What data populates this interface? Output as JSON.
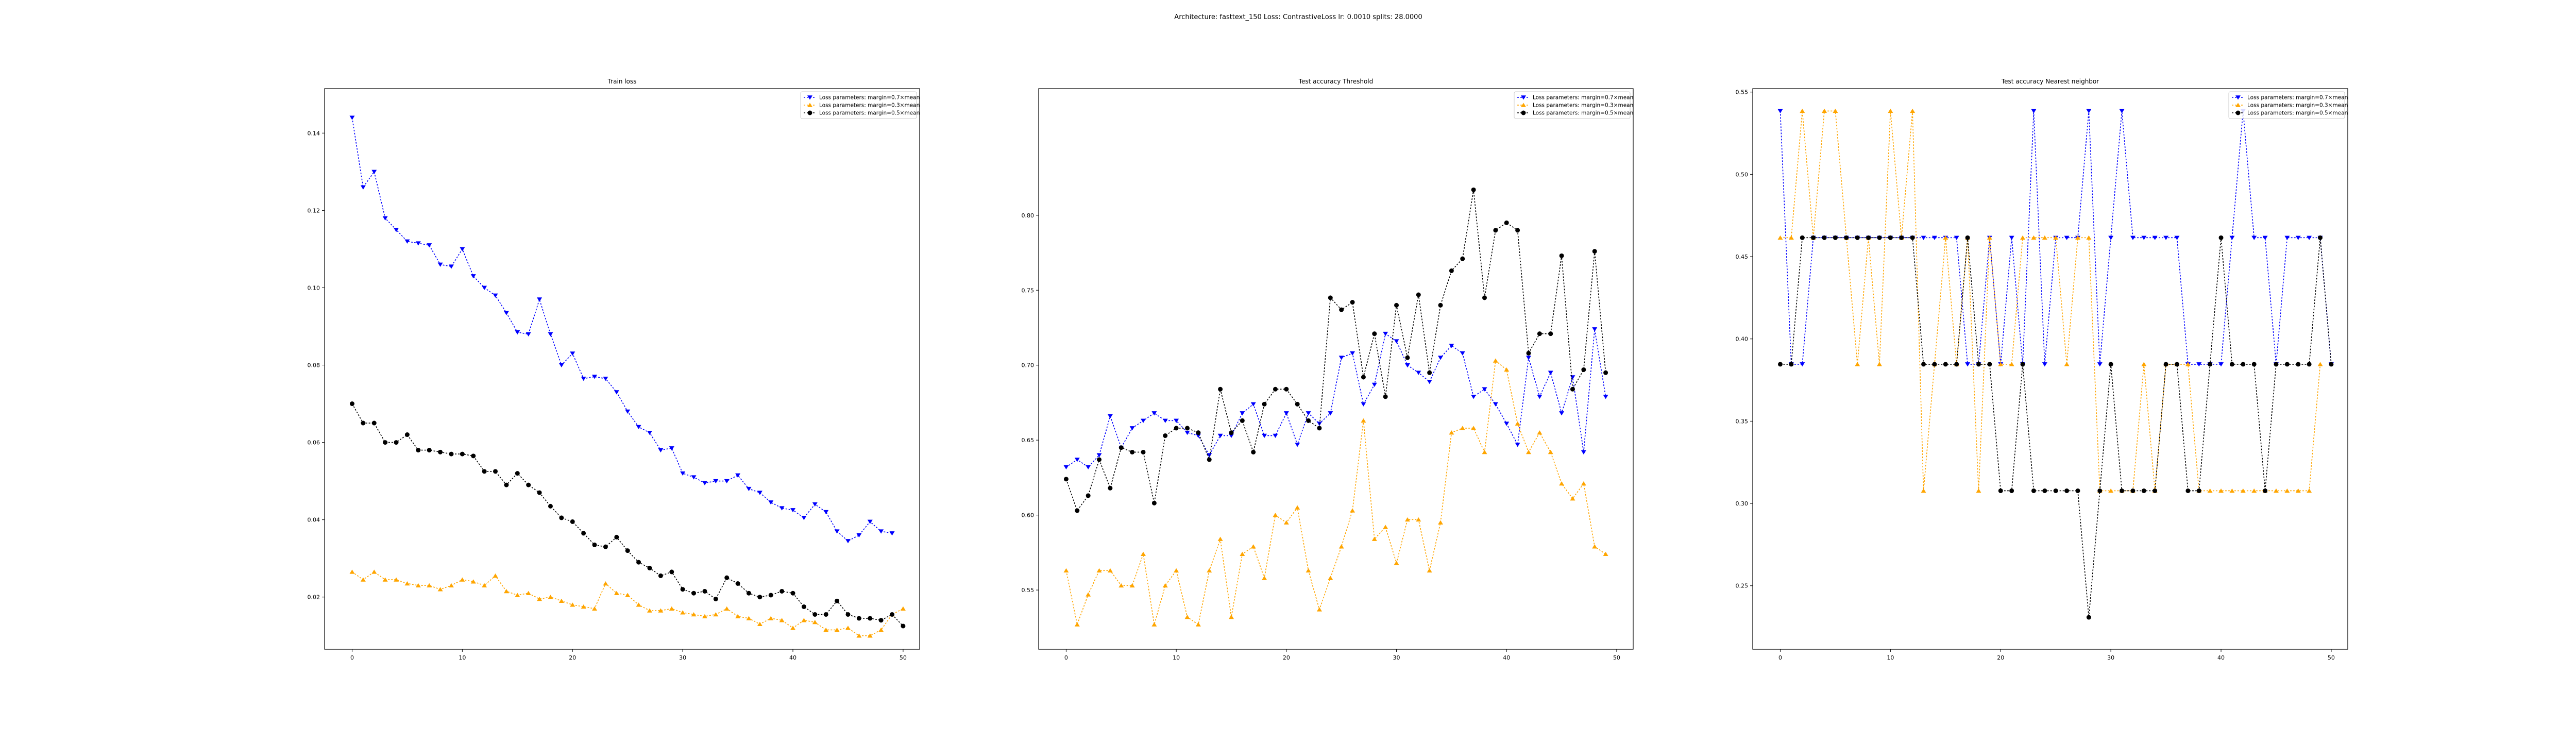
{
  "figure_title": "Architecture: fasttext_150 Loss: ContrastiveLoss lr: 0.0010 splits: 28.0000",
  "colors": {
    "series_0": "#0000ff",
    "series_1": "#ffa500",
    "series_2": "#000000"
  },
  "chart_data": [
    {
      "type": "line",
      "title": "Train loss",
      "xlabel": "",
      "ylabel": "",
      "xlim": [
        -2.5,
        51.5
      ],
      "ylim": [
        0.0065,
        0.1515
      ],
      "xticks": [
        0,
        10,
        20,
        30,
        40,
        50
      ],
      "xtick_labels": [
        "0",
        "10",
        "20",
        "30",
        "40",
        "50"
      ],
      "yticks": [
        0.02,
        0.04,
        0.06,
        0.08,
        0.1,
        0.12,
        0.14
      ],
      "ytick_labels": [
        "0.02",
        "0.04",
        "0.06",
        "0.08",
        "0.10",
        "0.12",
        "0.14"
      ],
      "legend_position": "top-right",
      "series": [
        {
          "name": "Loss parameters: margin=0.7×mean",
          "color": "#0000ff",
          "values": [
            0.144,
            0.126,
            0.13,
            0.118,
            0.115,
            0.112,
            0.1115,
            0.111,
            0.106,
            0.1055,
            0.11,
            0.103,
            0.1,
            0.098,
            0.0935,
            0.0885,
            0.088,
            0.097,
            0.088,
            0.08,
            0.083,
            0.0765,
            0.077,
            0.0765,
            0.073,
            0.068,
            0.064,
            0.0625,
            0.058,
            0.0585,
            0.052,
            0.051,
            0.0495,
            0.05,
            0.05,
            0.0515,
            0.048,
            0.047,
            0.0445,
            0.043,
            0.0425,
            0.0405,
            0.044,
            0.042,
            0.037,
            0.0345,
            0.036,
            0.0395,
            0.037,
            0.0365
          ]
        },
        {
          "name": "Loss parameters: margin=0.3×mean",
          "color": "#ffa500",
          "values": [
            0.0265,
            0.0245,
            0.0265,
            0.0245,
            0.0245,
            0.0235,
            0.023,
            0.023,
            0.022,
            0.023,
            0.0245,
            0.024,
            0.023,
            0.0255,
            0.0215,
            0.0205,
            0.021,
            0.0195,
            0.02,
            0.019,
            0.018,
            0.0175,
            0.017,
            0.0235,
            0.021,
            0.0205,
            0.018,
            0.0165,
            0.0165,
            0.017,
            0.016,
            0.0155,
            0.015,
            0.0155,
            0.017,
            0.015,
            0.0145,
            0.013,
            0.0145,
            0.014,
            0.012,
            0.014,
            0.0135,
            0.0115,
            0.0115,
            0.012,
            0.01,
            0.01,
            0.0115,
            0.0155,
            0.017
          ]
        },
        {
          "name": "Loss parameters: margin=0.5×mean",
          "color": "#000000",
          "values": [
            0.07,
            0.065,
            0.065,
            0.06,
            0.06,
            0.062,
            0.058,
            0.058,
            0.0575,
            0.057,
            0.057,
            0.0565,
            0.0525,
            0.0525,
            0.049,
            0.052,
            0.049,
            0.047,
            0.0435,
            0.0405,
            0.0395,
            0.0365,
            0.0335,
            0.033,
            0.0355,
            0.032,
            0.029,
            0.0275,
            0.0255,
            0.0265,
            0.022,
            0.021,
            0.0215,
            0.0195,
            0.025,
            0.0235,
            0.021,
            0.02,
            0.0205,
            0.0215,
            0.021,
            0.0175,
            0.0155,
            0.0155,
            0.019,
            0.0155,
            0.0145,
            0.0145,
            0.014,
            0.0155,
            0.0125
          ]
        }
      ]
    },
    {
      "type": "line",
      "title": "Test accuracy Threshold",
      "xlabel": "",
      "ylabel": "",
      "xlim": [
        -2.5,
        51.5
      ],
      "ylim": [
        0.5105,
        0.8845
      ],
      "xticks": [
        0,
        10,
        20,
        30,
        40,
        50
      ],
      "xtick_labels": [
        "0",
        "10",
        "20",
        "30",
        "40",
        "50"
      ],
      "yticks": [
        0.55,
        0.6,
        0.65,
        0.7,
        0.75,
        0.8
      ],
      "ytick_labels": [
        "0.55",
        "0.60",
        "0.65",
        "0.70",
        "0.75",
        "0.80"
      ],
      "legend_position": "top-right",
      "series": [
        {
          "name": "Loss parameters: margin=0.7×mean",
          "color": "#0000ff",
          "values": [
            0.632,
            0.637,
            0.632,
            0.64,
            0.666,
            0.645,
            0.658,
            0.663,
            0.668,
            0.663,
            0.663,
            0.655,
            0.653,
            0.64,
            0.653,
            0.653,
            0.668,
            0.674,
            0.653,
            0.653,
            0.668,
            0.647,
            0.668,
            0.661,
            0.668,
            0.705,
            0.708,
            0.674,
            0.687,
            0.721,
            0.716,
            0.7,
            0.695,
            0.689,
            0.705,
            0.713,
            0.708,
            0.679,
            0.684,
            0.674,
            0.661,
            0.647,
            0.705,
            0.679,
            0.695,
            0.668,
            0.692,
            0.642,
            0.724,
            0.679
          ]
        },
        {
          "name": "Loss parameters: margin=0.3×mean",
          "color": "#ffa500",
          "values": [
            0.563,
            0.527,
            0.547,
            0.563,
            0.563,
            0.553,
            0.553,
            0.574,
            0.527,
            0.553,
            0.563,
            0.532,
            0.527,
            0.563,
            0.584,
            0.532,
            0.574,
            0.579,
            0.558,
            0.6,
            0.595,
            0.605,
            0.563,
            0.537,
            0.558,
            0.579,
            0.603,
            0.663,
            0.584,
            0.592,
            0.568,
            0.597,
            0.597,
            0.563,
            0.595,
            0.655,
            0.658,
            0.658,
            0.642,
            0.703,
            0.697,
            0.661,
            0.642,
            0.655,
            0.642,
            0.621,
            0.611,
            0.621,
            0.579,
            0.574
          ]
        },
        {
          "name": "Loss parameters: margin=0.5×mean",
          "color": "#000000",
          "values": [
            0.624,
            0.603,
            0.613,
            0.637,
            0.618,
            0.645,
            0.642,
            0.642,
            0.608,
            0.653,
            0.658,
            0.658,
            0.655,
            0.637,
            0.684,
            0.655,
            0.663,
            0.642,
            0.674,
            0.684,
            0.684,
            0.674,
            0.663,
            0.658,
            0.745,
            0.737,
            0.742,
            0.692,
            0.721,
            0.679,
            0.74,
            0.705,
            0.747,
            0.695,
            0.74,
            0.763,
            0.771,
            0.817,
            0.745,
            0.79,
            0.795,
            0.79,
            0.708,
            0.721,
            0.721,
            0.773,
            0.684,
            0.697,
            0.776,
            0.695
          ]
        }
      ]
    },
    {
      "type": "line",
      "title": "Test accuracy Nearest neighbor",
      "xlabel": "",
      "ylabel": "",
      "xlim": [
        -2.5,
        51.5
      ],
      "ylim": [
        0.2114,
        0.5521
      ],
      "xticks": [
        0,
        10,
        20,
        30,
        40,
        50
      ],
      "xtick_labels": [
        "0",
        "10",
        "20",
        "30",
        "40",
        "50"
      ],
      "yticks": [
        0.25,
        0.3,
        0.35,
        0.4,
        0.45,
        0.5,
        0.55
      ],
      "ytick_labels": [
        "0.25",
        "0.30",
        "0.35",
        "0.40",
        "0.45",
        "0.50",
        "0.55"
      ],
      "legend_position": "top-right",
      "series": [
        {
          "name": "Loss parameters: margin=0.7×mean",
          "color": "#0000ff",
          "values": [
            0.5385,
            0.3846,
            0.3846,
            0.4615,
            0.4615,
            0.4615,
            0.4615,
            0.4615,
            0.4615,
            0.4615,
            0.4615,
            0.4615,
            0.4615,
            0.4615,
            0.4615,
            0.4615,
            0.4615,
            0.3846,
            0.3846,
            0.4615,
            0.3846,
            0.4615,
            0.3846,
            0.5385,
            0.3846,
            0.4615,
            0.4615,
            0.4615,
            0.5385,
            0.3846,
            0.4615,
            0.5385,
            0.4615,
            0.4615,
            0.4615,
            0.4615,
            0.4615,
            0.3846,
            0.3846,
            0.3846,
            0.3846,
            0.4615,
            0.5385,
            0.4615,
            0.4615,
            0.3846,
            0.4615,
            0.4615,
            0.4615,
            0.4615,
            0.3846
          ]
        },
        {
          "name": "Loss parameters: margin=0.3×mean",
          "color": "#ffa500",
          "values": [
            0.4615,
            0.4615,
            0.5385,
            0.4615,
            0.5385,
            0.5385,
            0.4615,
            0.3846,
            0.4615,
            0.3846,
            0.5385,
            0.4615,
            0.5385,
            0.3077,
            0.3846,
            0.4615,
            0.3846,
            0.4615,
            0.3077,
            0.4615,
            0.3846,
            0.3846,
            0.4615,
            0.4615,
            0.4615,
            0.4615,
            0.3846,
            0.4615,
            0.4615,
            0.3077,
            0.3077,
            0.3077,
            0.3077,
            0.3846,
            0.3077,
            0.3846,
            0.3846,
            0.3846,
            0.3077,
            0.3077,
            0.3077,
            0.3077,
            0.3077,
            0.3077,
            0.3077,
            0.3077,
            0.3077,
            0.3077,
            0.3077,
            0.3846
          ]
        },
        {
          "name": "Loss parameters: margin=0.5×mean",
          "color": "#000000",
          "values": [
            0.3846,
            0.3846,
            0.4615,
            0.4615,
            0.4615,
            0.4615,
            0.4615,
            0.4615,
            0.4615,
            0.4615,
            0.4615,
            0.4615,
            0.4615,
            0.3846,
            0.3846,
            0.3846,
            0.3846,
            0.4615,
            0.3846,
            0.3846,
            0.3077,
            0.3077,
            0.3846,
            0.3077,
            0.3077,
            0.3077,
            0.3077,
            0.3077,
            0.2308,
            0.3077,
            0.3846,
            0.3077,
            0.3077,
            0.3077,
            0.3077,
            0.3846,
            0.3846,
            0.3077,
            0.3077,
            0.3846,
            0.4615,
            0.3846,
            0.3846,
            0.3846,
            0.3077,
            0.3846,
            0.3846,
            0.3846,
            0.3846,
            0.4615,
            0.3846
          ]
        }
      ]
    }
  ]
}
